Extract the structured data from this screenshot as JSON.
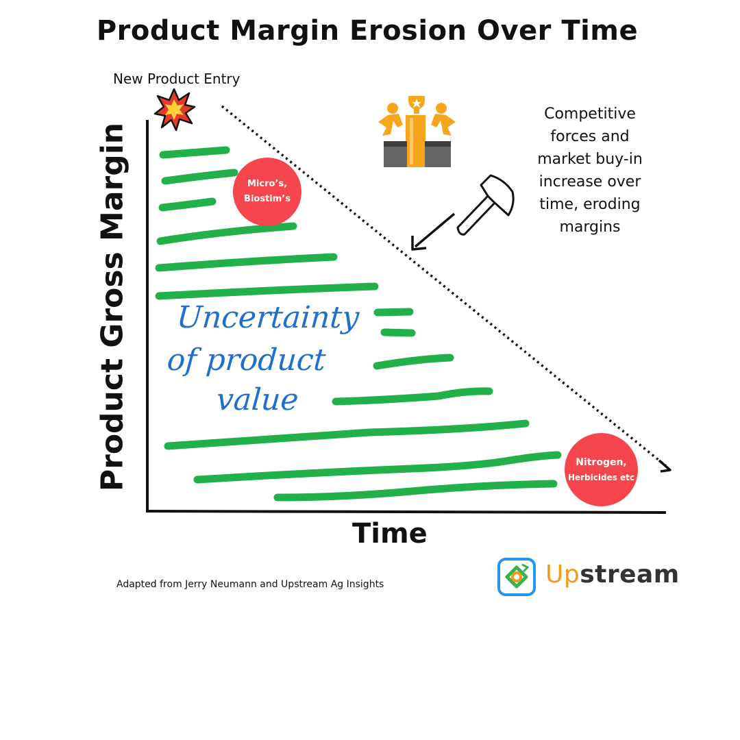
{
  "title": "Product Margin Erosion Over Time",
  "entry_label": "New Product Entry",
  "y_axis_label": "Product Gross Margin",
  "x_axis_label": "Time",
  "competition_note": "Competitive forces and market buy-in increase over time, eroding margins",
  "bubble_top": {
    "line1": "Micro’s,",
    "line2": "Biostim’s"
  },
  "bubble_bottom": {
    "line1": "Nitrogen,",
    "line2": "Herbicides etc"
  },
  "handwritten": [
    "Uncertainty",
    "of product",
    "value"
  ],
  "credit": "Adapted from Jerry Neumann and Upstream Ag Insights",
  "brand": {
    "up": "Up",
    "rest": "stream"
  },
  "colors": {
    "green_stroke": "#22b04b",
    "bubble": "#f4464c",
    "handwriting": "#1f6fd1",
    "brand_orange": "#f39a1d",
    "brand_blue": "#2196f3"
  },
  "icons": [
    "explosion-icon",
    "podium-icon",
    "axe-icon",
    "arrow-icon",
    "upstream-logo-icon"
  ]
}
